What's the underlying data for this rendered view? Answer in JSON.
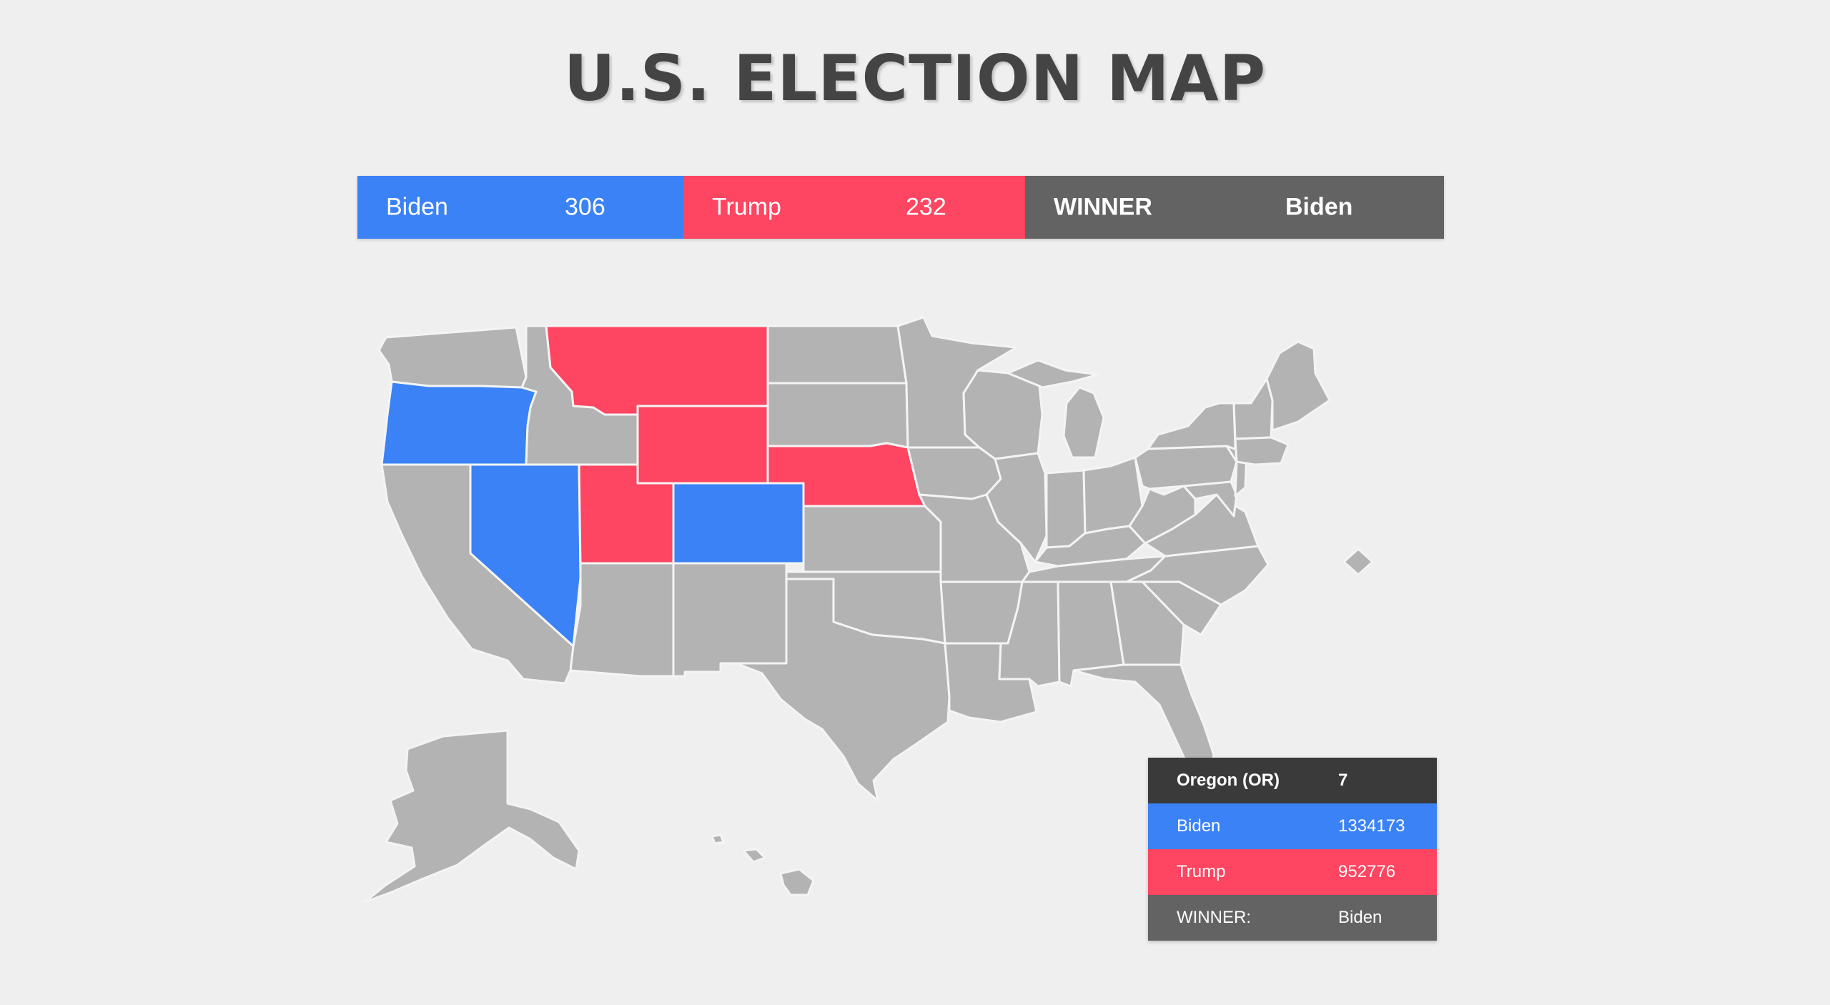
{
  "page": {
    "title": "U.S. ELECTION MAP"
  },
  "scoreboard": {
    "biden_label": "Biden",
    "biden_votes": "306",
    "trump_label": "Trump",
    "trump_votes": "232",
    "winner_label": "WINNER",
    "winner_value": "Biden"
  },
  "colors": {
    "biden": "#3b82f6",
    "trump": "#fe4561",
    "winner": "#636363",
    "neutral_state": "#b3b3b3",
    "info_header": "#3a3a3a",
    "background": "#efefef",
    "title": "#444444"
  },
  "map": {
    "states": [
      {
        "abbr": "OR",
        "party": "biden"
      },
      {
        "abbr": "NV",
        "party": "biden"
      },
      {
        "abbr": "CO",
        "party": "biden"
      },
      {
        "abbr": "MT",
        "party": "trump"
      },
      {
        "abbr": "WY",
        "party": "trump"
      },
      {
        "abbr": "UT",
        "party": "trump"
      },
      {
        "abbr": "NE",
        "party": "trump"
      }
    ]
  },
  "info_panel": {
    "state_name": "Oregon (OR)",
    "electoral_votes": "7",
    "biden_label": "Biden",
    "biden_votes": "1334173",
    "trump_label": "Trump",
    "trump_votes": "952776",
    "winner_label": "WINNER:",
    "winner_value": "Biden"
  }
}
